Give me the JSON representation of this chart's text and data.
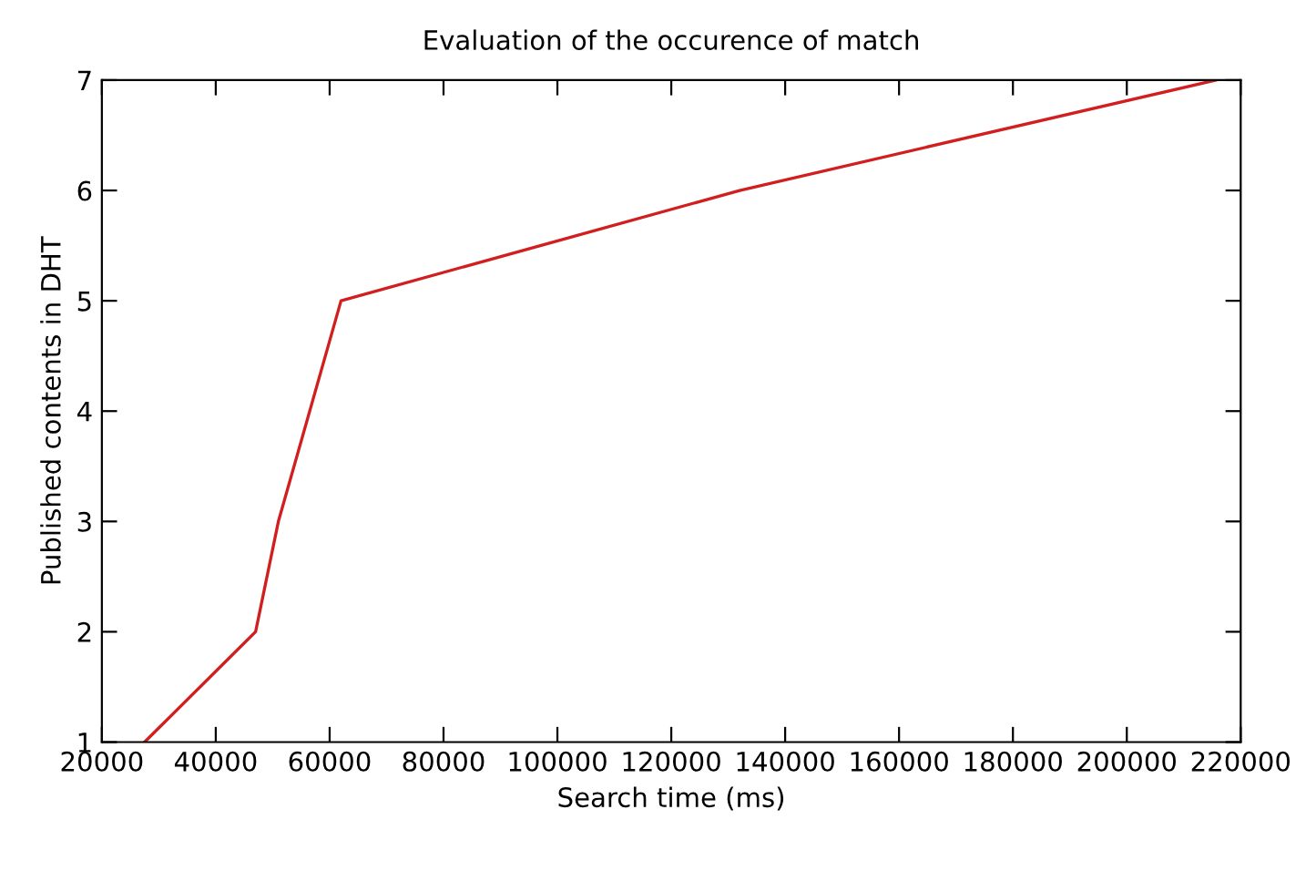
{
  "chart_data": {
    "type": "line",
    "title": "Evaluation of the occurence of match",
    "xlabel": "Search time (ms)",
    "ylabel": "Published contents in DHT",
    "x": [
      27500,
      47000,
      51000,
      62000,
      132000,
      215600
    ],
    "series": [
      {
        "color": "#d11f1f",
        "values": [
          1,
          2,
          3,
          5,
          6,
          7
        ]
      }
    ],
    "xlim": [
      20000,
      220000
    ],
    "xticks": [
      20000,
      40000,
      60000,
      80000,
      100000,
      120000,
      140000,
      160000,
      180000,
      200000,
      220000
    ],
    "ylim": [
      1,
      7
    ],
    "yticks": [
      1,
      2,
      3,
      4,
      5,
      6,
      7
    ],
    "grid": false,
    "legend": false,
    "marker": "none",
    "line_style": "solid"
  }
}
